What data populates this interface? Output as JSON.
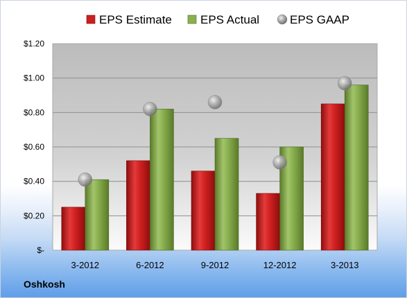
{
  "company": "Oshkosh",
  "chart_data": {
    "type": "bar",
    "categories": [
      "3-2012",
      "6-2012",
      "9-2012",
      "12-2012",
      "3-2013"
    ],
    "series": [
      {
        "name": "EPS Estimate",
        "values": [
          0.25,
          0.52,
          0.46,
          0.33,
          0.85
        ],
        "color": "#cc1f1f"
      },
      {
        "name": "EPS Actual",
        "values": [
          0.41,
          0.82,
          0.65,
          0.6,
          0.96
        ],
        "color": "#82a84a"
      },
      {
        "name": "EPS GAAP",
        "values": [
          0.41,
          0.82,
          0.86,
          0.51,
          0.97
        ],
        "color": "#9a9a9a",
        "mark": "sphere"
      }
    ],
    "yticks": [
      {
        "value": 0,
        "label": "$-"
      },
      {
        "value": 0.2,
        "label": "$0.20"
      },
      {
        "value": 0.4,
        "label": "$0.40"
      },
      {
        "value": 0.6,
        "label": "$0.60"
      },
      {
        "value": 0.8,
        "label": "$0.80"
      },
      {
        "value": 1.0,
        "label": "$1.00"
      },
      {
        "value": 1.2,
        "label": "$1.20"
      }
    ],
    "ylim": [
      0,
      1.2
    ],
    "grid": true,
    "legend_position": "top",
    "title": "",
    "xlabel": "",
    "ylabel": ""
  }
}
